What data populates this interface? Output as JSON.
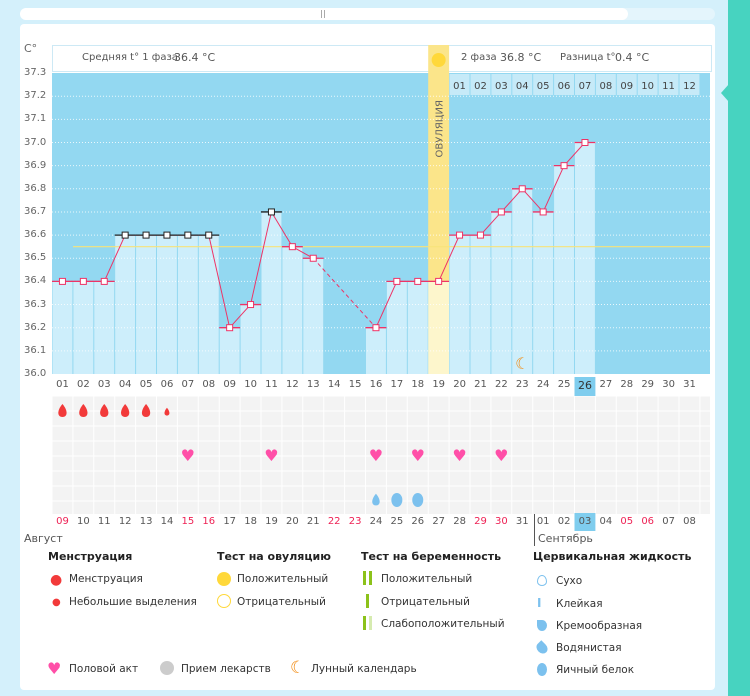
{
  "header": {
    "unit": "C°",
    "phase1_label": "Средняя t° 1 фаза",
    "phase1_value": "36.4 °C",
    "phase2_label": "2 фаза",
    "phase2_value": "36.8 °C",
    "diff_label": "Разница t°",
    "diff_value": "0.4 °C",
    "ovulation_label": "ОВУЛЯЦИЯ"
  },
  "y_ticks": [
    "37.3",
    "37.2",
    "37.1",
    "37.0",
    "36.9",
    "36.8",
    "36.7",
    "36.6",
    "36.5",
    "36.4",
    "36.3",
    "36.2",
    "36.1",
    "36.0"
  ],
  "phase2_days": [
    "01",
    "02",
    "03",
    "04",
    "05",
    "06",
    "07",
    "08",
    "09",
    "10",
    "11",
    "12"
  ],
  "cycle_days": [
    "01",
    "02",
    "03",
    "04",
    "05",
    "06",
    "07",
    "08",
    "09",
    "10",
    "11",
    "12",
    "13",
    "14",
    "15",
    "16",
    "17",
    "18",
    "19",
    "20",
    "21",
    "22",
    "23",
    "24",
    "25",
    "26",
    "27",
    "28",
    "29",
    "30",
    "31"
  ],
  "current_cycle_day": "26",
  "chart_data": {
    "type": "line",
    "title": "",
    "xlabel": "День цикла",
    "ylabel": "C°",
    "ylim": [
      36.0,
      37.3
    ],
    "cover_line": 36.55,
    "ovulation_day": 19,
    "temps": [
      36.4,
      36.4,
      36.4,
      36.6,
      36.6,
      36.6,
      36.6,
      36.6,
      36.2,
      36.3,
      36.7,
      36.55,
      36.5,
      null,
      null,
      36.2,
      36.4,
      36.4,
      36.4,
      36.6,
      36.6,
      36.7,
      36.8,
      36.7,
      36.9,
      37.0,
      null,
      null,
      null,
      null,
      null
    ]
  },
  "menstruation": {
    "heavy_days": [
      1,
      2,
      3,
      4,
      5
    ],
    "light_days": [
      6
    ]
  },
  "intercourse_days": [
    7,
    11,
    16,
    18,
    20,
    22
  ],
  "cervical": {
    "watery": [
      16
    ],
    "egg_white": [
      17,
      18
    ]
  },
  "moon_days": [
    23
  ],
  "dates": [
    "09",
    "10",
    "11",
    "12",
    "13",
    "14",
    "15",
    "16",
    "17",
    "18",
    "19",
    "20",
    "21",
    "22",
    "23",
    "24",
    "25",
    "26",
    "27",
    "28",
    "29",
    "30",
    "31",
    "01",
    "02",
    "03",
    "04",
    "05",
    "06",
    "07",
    "08"
  ],
  "weekend_idx": [
    0,
    6,
    7,
    13,
    14,
    20,
    21,
    27,
    28
  ],
  "today_idx": 25,
  "months": {
    "first": "Август",
    "second": "Сентябрь"
  },
  "legend": {
    "menstruation": {
      "title": "Менструация",
      "items": [
        "Менструация",
        "Небольшие выделения"
      ]
    },
    "ovulation_test": {
      "title": "Тест на овуляцию",
      "items": [
        "Положительный",
        "Отрицательный"
      ]
    },
    "pregnancy_test": {
      "title": "Тест на беременность",
      "items": [
        "Положительный",
        "Отрицательный",
        "Слабоположительный"
      ]
    },
    "cervical": {
      "title": "Цервикальная жидкость",
      "items": [
        "Сухо",
        "Клейкая",
        "Кремообразная",
        "Водянистая",
        "Яичный белок"
      ]
    },
    "other": [
      "Половой акт",
      "Прием лекарств",
      "Лунный календарь"
    ]
  },
  "colors": {
    "bg": "#93d8f1",
    "bar": "#cdeefb",
    "line": "#ee3366",
    "cover": "#f7e37a",
    "ovulation": "#fbe58a",
    "heart": "#ff4fa8",
    "blood": "#f23a3a",
    "fluid": "#7cc1ee",
    "moon": "#f28c13"
  }
}
